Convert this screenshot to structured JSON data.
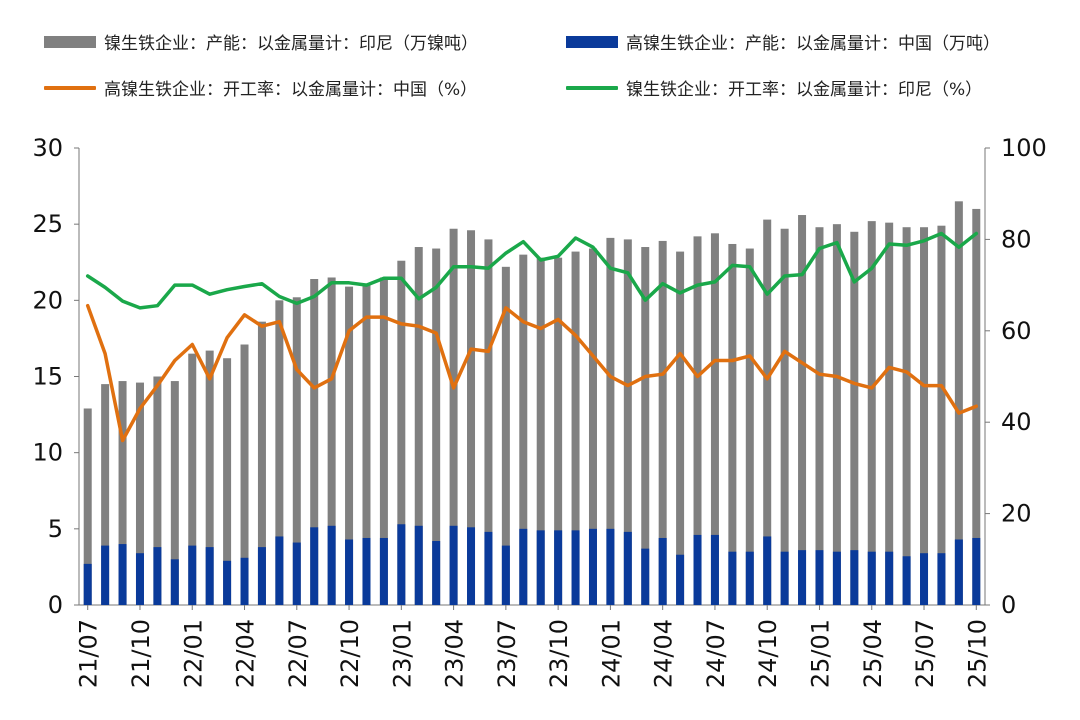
{
  "chart_data": {
    "type": "bar",
    "x": [
      "21/07",
      "21/08",
      "21/09",
      "21/10",
      "21/11",
      "21/12",
      "22/01",
      "22/02",
      "22/03",
      "22/04",
      "22/05",
      "22/06",
      "22/07",
      "22/08",
      "22/09",
      "22/10",
      "22/11",
      "22/12",
      "23/01",
      "23/02",
      "23/03",
      "23/04",
      "23/05",
      "23/06",
      "23/07",
      "23/08",
      "23/09",
      "23/10",
      "23/11",
      "23/12",
      "24/01",
      "24/02",
      "24/03",
      "24/04",
      "24/05",
      "24/06",
      "24/07",
      "24/08",
      "24/09",
      "24/10",
      "24/11",
      "24/12",
      "25/01",
      "25/02",
      "25/03",
      "25/04",
      "25/05",
      "25/06",
      "25/07",
      "25/08",
      "25/09",
      "25/10"
    ],
    "x_tick_labels": [
      "21/07",
      "21/10",
      "22/01",
      "22/04",
      "22/07",
      "22/10",
      "23/01",
      "23/04",
      "23/07",
      "23/10",
      "24/01",
      "24/04",
      "24/07",
      "24/10",
      "25/01",
      "25/04",
      "25/07",
      "25/10"
    ],
    "y_left": {
      "min": 0,
      "max": 30,
      "ticks": [
        0,
        5,
        10,
        15,
        20,
        25,
        30
      ]
    },
    "y_right": {
      "min": 0,
      "max": 100,
      "ticks": [
        0,
        20,
        40,
        60,
        80,
        100
      ]
    },
    "legend_position": "top",
    "grid": false,
    "series": [
      {
        "name": "镍生铁企业：产能：以金属量计：印尼（万镍吨）",
        "kind": "bar",
        "axis": "left",
        "color": "#808080",
        "values": [
          12.9,
          14.5,
          14.7,
          14.6,
          15.0,
          14.7,
          16.5,
          16.7,
          16.2,
          17.1,
          18.6,
          20.0,
          20.2,
          21.4,
          21.5,
          20.9,
          21.0,
          21.5,
          22.6,
          23.5,
          23.4,
          24.7,
          24.6,
          24.0,
          22.2,
          23.0,
          22.8,
          22.8,
          23.2,
          23.4,
          24.1,
          24.0,
          23.5,
          23.9,
          23.2,
          24.2,
          24.4,
          23.7,
          23.4,
          25.3,
          24.7,
          25.6,
          24.8,
          25.0,
          24.5,
          25.2,
          25.1,
          24.8,
          24.8,
          24.9,
          26.5,
          26.0
        ]
      },
      {
        "name": "高镍生铁企业：产能：以金属量计：中国（万吨）",
        "kind": "bar",
        "axis": "left",
        "color": "#0a3a9a",
        "values": [
          2.7,
          3.9,
          4.0,
          3.4,
          3.8,
          3.0,
          3.9,
          3.8,
          2.9,
          3.1,
          3.8,
          4.5,
          4.1,
          5.1,
          5.2,
          4.3,
          4.4,
          4.4,
          5.3,
          5.2,
          4.2,
          5.2,
          5.1,
          4.8,
          3.9,
          5.0,
          4.9,
          4.9,
          4.9,
          5.0,
          5.0,
          4.8,
          3.7,
          4.4,
          3.3,
          4.6,
          4.6,
          3.5,
          3.5,
          4.5,
          3.5,
          3.6,
          3.6,
          3.5,
          3.6,
          3.5,
          3.5,
          3.2,
          3.4,
          3.4,
          4.3,
          4.4
        ]
      },
      {
        "name": "高镍生铁企业：开工率：以金属量计：中国（%）",
        "kind": "line",
        "axis": "right",
        "color": "#e07010",
        "values": [
          65.5,
          55,
          36,
          43,
          48,
          53.5,
          57,
          49.5,
          58.5,
          63.5,
          61,
          62,
          51.5,
          47.5,
          49.5,
          60,
          63,
          63,
          61.5,
          61,
          59.5,
          47.5,
          56,
          55.5,
          65,
          62,
          60.5,
          62.5,
          59,
          54.5,
          50,
          48,
          50,
          50.5,
          55,
          50,
          53.5,
          53.5,
          54.5,
          49.5,
          55.5,
          53,
          50.5,
          50,
          48.5,
          47.5,
          52,
          51,
          48,
          48,
          42,
          43.5
        ]
      },
      {
        "name": "镍生铁企业：开工率：以金属量计：印尼（%）",
        "kind": "line",
        "axis": "right",
        "color": "#1aa84a",
        "values": [
          72,
          69.5,
          66.5,
          65,
          65.5,
          70,
          70,
          68,
          69,
          69.7,
          70.3,
          67.5,
          66,
          67.5,
          70.5,
          70.5,
          70,
          71.5,
          71.5,
          67,
          69.5,
          74,
          74,
          73.7,
          77,
          79.5,
          75.5,
          76.3,
          80.3,
          78.3,
          73.7,
          72.7,
          66.7,
          70.3,
          68.3,
          70,
          70.7,
          74.3,
          74,
          68,
          72,
          72.3,
          78,
          79.3,
          70.7,
          73.7,
          79,
          78.7,
          79.7,
          81.3,
          78.3,
          81.3
        ]
      }
    ]
  }
}
